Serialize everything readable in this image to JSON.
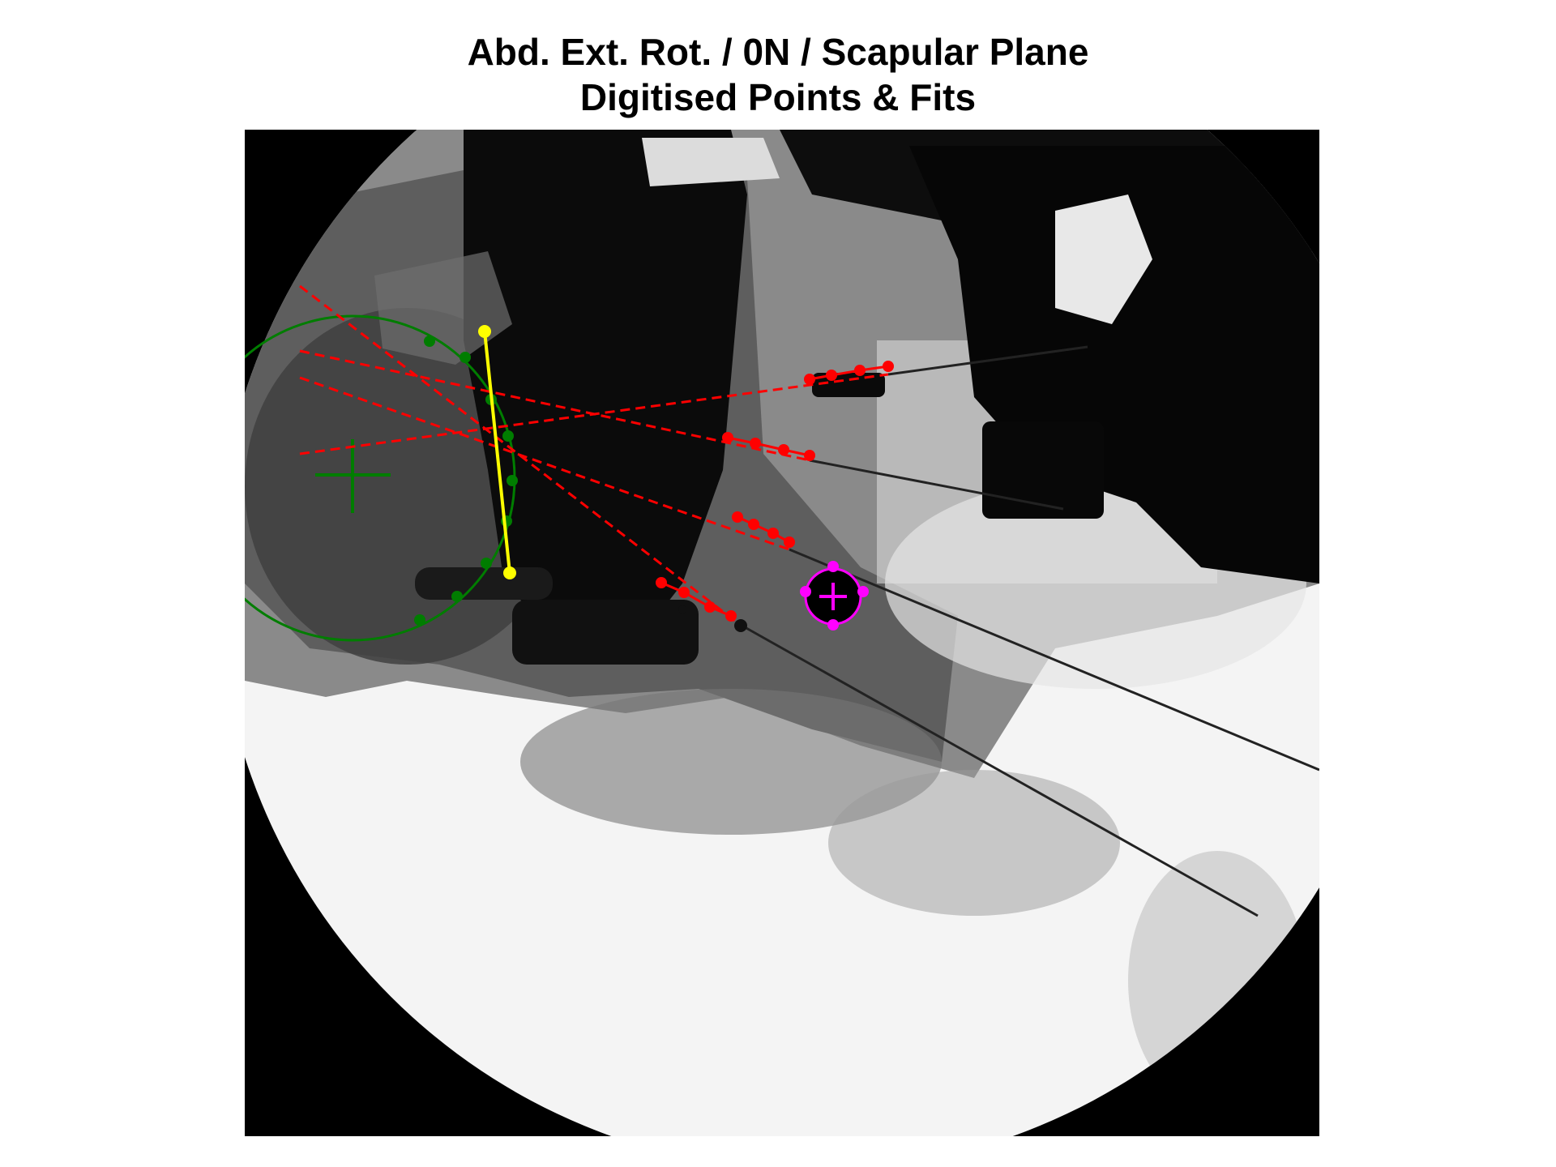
{
  "title": {
    "line1": "Abd. Ext. Rot. / 0N / Scapular Plane",
    "line2": "Digitised Points & Fits"
  },
  "colors": {
    "background": "#ffffff",
    "image_background": "#000000",
    "humeral_head_fit": "#007d00",
    "glenoid_axis": "#ffff00",
    "wires": "#ff0000",
    "marker": "#ff00ff"
  },
  "overlays": [
    {
      "name": "humeral-head-circle-fit",
      "color": "green",
      "shape": "circle with centre cross"
    },
    {
      "name": "glenoid-line",
      "color": "yellow",
      "shape": "line segment with endpoints"
    },
    {
      "name": "wire-line-fits",
      "color": "red",
      "shape": "dashed extrapolated lines",
      "count": 4
    },
    {
      "name": "bead-marker-fit",
      "color": "magenta",
      "shape": "circle with centre cross"
    }
  ]
}
